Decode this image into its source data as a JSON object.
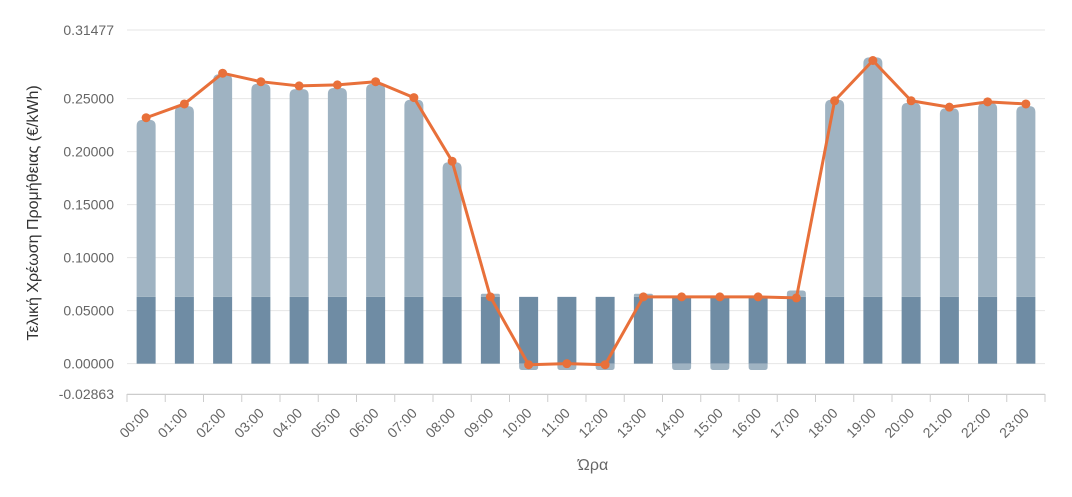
{
  "chart_data": {
    "type": "bar",
    "title": "",
    "xlabel": "Ώρα",
    "ylabel": "Τελική Χρέωση Προμήθειας (€/kWh)",
    "ylim": [
      -0.02863,
      0.31477
    ],
    "y_ticks": [
      "0.31477",
      "0.25000",
      "0.20000",
      "0.15000",
      "0.10000",
      "0.05000",
      "0.00000",
      "-0.02863"
    ],
    "y_tick_values": [
      0.31477,
      0.25,
      0.2,
      0.15,
      0.1,
      0.05,
      0.0,
      -0.02863
    ],
    "grid": true,
    "categories": [
      "00:00",
      "01:00",
      "02:00",
      "03:00",
      "04:00",
      "05:00",
      "06:00",
      "07:00",
      "08:00",
      "09:00",
      "10:00",
      "11:00",
      "12:00",
      "13:00",
      "14:00",
      "15:00",
      "16:00",
      "17:00",
      "18:00",
      "19:00",
      "20:00",
      "21:00",
      "22:00",
      "23:00"
    ],
    "series": [
      {
        "type": "bar",
        "color": "#6f8ca4",
        "values": [
          0.063,
          0.063,
          0.063,
          0.063,
          0.063,
          0.063,
          0.063,
          0.063,
          0.063,
          0.063,
          0.063,
          0.063,
          0.063,
          0.063,
          0.063,
          0.063,
          0.063,
          0.063,
          0.063,
          0.063,
          0.063,
          0.063,
          0.063,
          0.063
        ]
      },
      {
        "type": "bar",
        "color": "#9fb3c2",
        "values": [
          0.167,
          0.18,
          0.21,
          0.201,
          0.196,
          0.197,
          0.201,
          0.186,
          0.127,
          0.003,
          -0.006,
          -0.006,
          -0.006,
          0.003,
          -0.006,
          -0.006,
          -0.006,
          0.006,
          0.186,
          0.226,
          0.183,
          0.178,
          0.183,
          0.18
        ]
      },
      {
        "type": "line",
        "color": "#e8703a",
        "values": [
          0.232,
          0.245,
          0.274,
          0.266,
          0.262,
          0.263,
          0.266,
          0.251,
          0.191,
          0.063,
          -0.001,
          0.0,
          -0.001,
          0.063,
          0.063,
          0.063,
          0.063,
          0.062,
          0.248,
          0.286,
          0.248,
          0.242,
          0.247,
          0.245
        ]
      }
    ]
  }
}
